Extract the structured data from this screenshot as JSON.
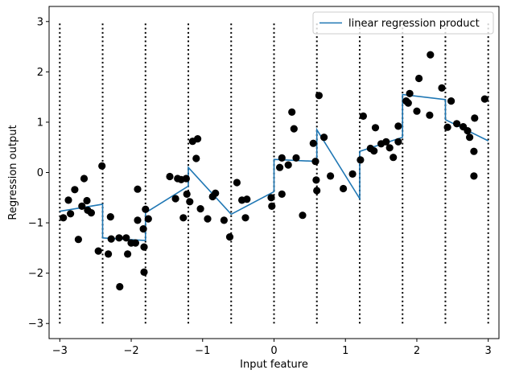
{
  "chart_data": {
    "type": "line",
    "title": "",
    "xlabel": "Input feature",
    "ylabel": "Regression output",
    "xlim": [
      -3.15,
      3.15
    ],
    "ylim": [
      -3.3,
      3.3
    ],
    "xticks": [
      -3,
      -2,
      -1,
      0,
      1,
      2,
      3
    ],
    "xtick_labels": [
      "−3",
      "−2",
      "−1",
      "0",
      "1",
      "2",
      "3"
    ],
    "yticks": [
      -3,
      -2,
      -1,
      0,
      1,
      2,
      3
    ],
    "ytick_labels": [
      "−3",
      "−2",
      "−1",
      "0",
      "1",
      "2",
      "3"
    ],
    "grid": false,
    "legend_position": "top-right",
    "colors": {
      "line": "#1f77b4",
      "points": "#000000",
      "bin_edges": "#000000"
    },
    "bin_edges": [
      -3.0,
      -2.4,
      -1.8,
      -1.2,
      -0.6,
      0.0,
      0.6,
      1.2,
      1.8,
      2.4,
      3.0
    ],
    "bin_edge_yrange": [
      -3,
      3
    ],
    "series": [
      {
        "name": "linear regression product",
        "segments": [
          [
            [
              -3.0,
              -0.77
            ],
            [
              -2.4,
              -0.63
            ]
          ],
          [
            [
              -2.4,
              -1.3
            ],
            [
              -1.8,
              -1.35
            ]
          ],
          [
            [
              -1.8,
              -0.8
            ],
            [
              -1.2,
              -0.27
            ]
          ],
          [
            [
              -1.2,
              0.1
            ],
            [
              -0.6,
              -0.83
            ]
          ],
          [
            [
              -0.6,
              -0.83
            ],
            [
              0.0,
              -0.38
            ]
          ],
          [
            [
              0.0,
              0.26
            ],
            [
              0.6,
              0.22
            ]
          ],
          [
            [
              0.6,
              0.85
            ],
            [
              1.2,
              -0.52
            ]
          ],
          [
            [
              1.2,
              0.42
            ],
            [
              1.8,
              0.7
            ]
          ],
          [
            [
              1.8,
              1.55
            ],
            [
              2.4,
              1.45
            ]
          ],
          [
            [
              2.4,
              1.05
            ],
            [
              3.0,
              0.63
            ]
          ]
        ]
      }
    ],
    "points": [
      [
        -2.95,
        -0.9
      ],
      [
        -2.88,
        -0.55
      ],
      [
        -2.85,
        -0.82
      ],
      [
        -2.79,
        -0.34
      ],
      [
        -2.74,
        -1.33
      ],
      [
        -2.69,
        -0.67
      ],
      [
        -2.66,
        -0.12
      ],
      [
        -2.62,
        -0.56
      ],
      [
        -2.61,
        -0.75
      ],
      [
        -2.56,
        -0.8
      ],
      [
        -2.46,
        -1.56
      ],
      [
        -2.41,
        0.13
      ],
      [
        -2.32,
        -1.62
      ],
      [
        -2.29,
        -0.88
      ],
      [
        -2.28,
        -1.32
      ],
      [
        -2.17,
        -1.3
      ],
      [
        -2.16,
        -2.27
      ],
      [
        -2.07,
        -1.3
      ],
      [
        -2.05,
        -1.62
      ],
      [
        -2.0,
        -1.4
      ],
      [
        -1.94,
        -1.4
      ],
      [
        -1.91,
        -0.33
      ],
      [
        -1.91,
        -0.95
      ],
      [
        -1.83,
        -1.12
      ],
      [
        -1.82,
        -1.48
      ],
      [
        -1.82,
        -1.98
      ],
      [
        -1.76,
        -0.92
      ],
      [
        -1.8,
        -0.73
      ],
      [
        -1.46,
        -0.08
      ],
      [
        -1.38,
        -0.52
      ],
      [
        -1.35,
        -0.12
      ],
      [
        -1.3,
        -0.14
      ],
      [
        -1.27,
        -0.9
      ],
      [
        -1.23,
        -0.12
      ],
      [
        -1.22,
        -0.43
      ],
      [
        -1.18,
        -0.58
      ],
      [
        -1.14,
        0.62
      ],
      [
        -1.09,
        0.28
      ],
      [
        -1.07,
        0.67
      ],
      [
        -1.03,
        -0.72
      ],
      [
        -0.93,
        -0.92
      ],
      [
        -0.86,
        -0.48
      ],
      [
        -0.82,
        -0.41
      ],
      [
        -0.7,
        -0.95
      ],
      [
        -0.62,
        -1.28
      ],
      [
        -0.52,
        -0.2
      ],
      [
        -0.45,
        -0.55
      ],
      [
        -0.4,
        -0.9
      ],
      [
        -0.38,
        -0.53
      ],
      [
        -0.04,
        -0.5
      ],
      [
        -0.03,
        -0.67
      ],
      [
        0.08,
        0.1
      ],
      [
        0.11,
        -0.43
      ],
      [
        0.11,
        0.29
      ],
      [
        0.2,
        0.15
      ],
      [
        0.25,
        1.2
      ],
      [
        0.28,
        0.87
      ],
      [
        0.31,
        0.29
      ],
      [
        0.4,
        -0.85
      ],
      [
        0.55,
        0.58
      ],
      [
        0.58,
        0.22
      ],
      [
        0.59,
        -0.15
      ],
      [
        0.6,
        -0.36
      ],
      [
        0.63,
        1.53
      ],
      [
        0.7,
        0.7
      ],
      [
        0.79,
        -0.07
      ],
      [
        0.97,
        -0.32
      ],
      [
        1.1,
        -0.03
      ],
      [
        1.21,
        0.25
      ],
      [
        1.25,
        1.12
      ],
      [
        1.4,
        0.43
      ],
      [
        1.35,
        0.48
      ],
      [
        1.42,
        0.89
      ],
      [
        1.5,
        0.57
      ],
      [
        1.57,
        0.61
      ],
      [
        1.62,
        0.49
      ],
      [
        1.67,
        0.3
      ],
      [
        1.74,
        0.61
      ],
      [
        1.74,
        0.92
      ],
      [
        1.85,
        1.42
      ],
      [
        1.88,
        1.38
      ],
      [
        1.9,
        1.57
      ],
      [
        2.03,
        1.87
      ],
      [
        2.0,
        1.22
      ],
      [
        2.19,
        2.34
      ],
      [
        2.18,
        1.14
      ],
      [
        2.35,
        1.68
      ],
      [
        2.43,
        0.9
      ],
      [
        2.48,
        1.42
      ],
      [
        2.56,
        0.97
      ],
      [
        2.65,
        0.91
      ],
      [
        2.71,
        0.83
      ],
      [
        2.74,
        0.7
      ],
      [
        2.8,
        0.42
      ],
      [
        2.81,
        1.08
      ],
      [
        2.8,
        -0.07
      ],
      [
        2.95,
        1.46
      ]
    ]
  }
}
